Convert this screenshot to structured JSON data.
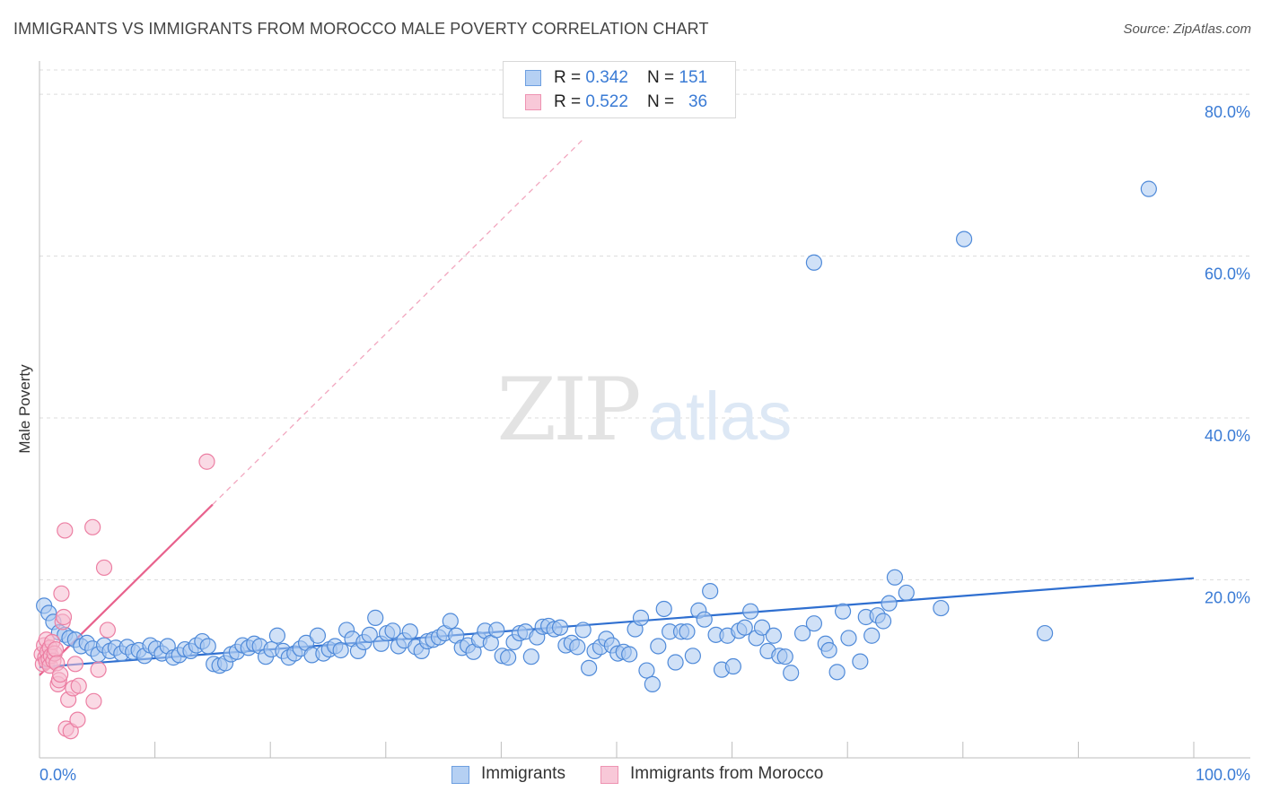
{
  "title": "IMMIGRANTS VS IMMIGRANTS FROM MOROCCO MALE POVERTY CORRELATION CHART",
  "source": "Source: ZipAtlas.com",
  "watermark": {
    "zip": "ZIP",
    "atlas": "atlas"
  },
  "colors": {
    "blue": "#3a7bd5",
    "blue_fill": "#a9c8f0",
    "blue_line": "#2f6fd0",
    "pink": "#ec6f96",
    "pink_fill": "#f6bccf",
    "pink_line": "#e8628d",
    "grid": "#dddddd",
    "tick_label": "#3a7bd5"
  },
  "legend": {
    "rows": [
      {
        "r_label": "R = ",
        "r_value": "0.342",
        "n_label": "N = ",
        "n_value": "151"
      },
      {
        "r_label": "R = ",
        "r_value": "0.522",
        "n_label": "N = ",
        "n_value": "36"
      }
    ]
  },
  "bottom_legend": [
    "Immigrants",
    "Immigrants from Morocco"
  ],
  "chart_data": {
    "type": "scatter",
    "title": "IMMIGRANTS VS IMMIGRANTS FROM MOROCCO MALE POVERTY CORRELATION CHART",
    "xlabel": "",
    "ylabel": "Male Poverty",
    "xlim": [
      0,
      100
    ],
    "ylim": [
      -2,
      83
    ],
    "x_tick_labels": [
      {
        "value": 0,
        "label": "0.0%"
      },
      {
        "value": 100,
        "label": "100.0%"
      }
    ],
    "y_tick_labels": [
      {
        "value": 20,
        "label": "20.0%"
      },
      {
        "value": 40,
        "label": "40.0%"
      },
      {
        "value": 60,
        "label": "60.0%"
      },
      {
        "value": 80,
        "label": "80.0%"
      }
    ],
    "x_minor_ticks": [
      10,
      20,
      30,
      40,
      50,
      60,
      70,
      80,
      90,
      100
    ],
    "grid": true,
    "series": [
      {
        "name": "Immigrants",
        "R": 0.342,
        "N": 151,
        "trend": {
          "x0": 0,
          "y0": 9.2,
          "x1": 100,
          "y1": 20.2
        },
        "points": [
          [
            0.4,
            16.8
          ],
          [
            0.8,
            15.9
          ],
          [
            1.2,
            14.8
          ],
          [
            1.7,
            13.5
          ],
          [
            2.2,
            13.2
          ],
          [
            2.6,
            12.8
          ],
          [
            3.1,
            12.6
          ],
          [
            3.6,
            11.8
          ],
          [
            4.1,
            12.2
          ],
          [
            4.6,
            11.5
          ],
          [
            5.1,
            10.8
          ],
          [
            5.6,
            11.9
          ],
          [
            6.1,
            11.2
          ],
          [
            6.6,
            11.6
          ],
          [
            7.1,
            10.9
          ],
          [
            7.6,
            11.7
          ],
          [
            8.1,
            11.1
          ],
          [
            8.6,
            11.3
          ],
          [
            9.1,
            10.6
          ],
          [
            9.6,
            11.9
          ],
          [
            10.1,
            11.5
          ],
          [
            10.6,
            10.9
          ],
          [
            11.1,
            11.8
          ],
          [
            11.6,
            10.4
          ],
          [
            12.1,
            10.7
          ],
          [
            12.6,
            11.4
          ],
          [
            13.1,
            11.2
          ],
          [
            13.6,
            11.9
          ],
          [
            14.1,
            12.4
          ],
          [
            14.6,
            11.8
          ],
          [
            15.1,
            9.6
          ],
          [
            15.6,
            9.4
          ],
          [
            16.1,
            9.7
          ],
          [
            16.6,
            10.8
          ],
          [
            17.1,
            11.1
          ],
          [
            17.6,
            11.9
          ],
          [
            18.1,
            11.6
          ],
          [
            18.6,
            12.1
          ],
          [
            19.1,
            11.8
          ],
          [
            19.6,
            10.5
          ],
          [
            20.1,
            11.4
          ],
          [
            20.6,
            13.1
          ],
          [
            21.1,
            11.2
          ],
          [
            21.6,
            10.4
          ],
          [
            22.1,
            10.9
          ],
          [
            22.6,
            11.5
          ],
          [
            23.1,
            12.2
          ],
          [
            23.6,
            10.7
          ],
          [
            24.1,
            13.1
          ],
          [
            24.6,
            10.9
          ],
          [
            25.1,
            11.4
          ],
          [
            25.6,
            11.8
          ],
          [
            26.1,
            11.3
          ],
          [
            26.6,
            13.8
          ],
          [
            27.1,
            12.7
          ],
          [
            27.6,
            11.2
          ],
          [
            28.1,
            12.3
          ],
          [
            28.6,
            13.2
          ],
          [
            29.1,
            15.3
          ],
          [
            29.6,
            12.1
          ],
          [
            30.1,
            13.4
          ],
          [
            30.6,
            13.7
          ],
          [
            31.1,
            11.8
          ],
          [
            31.6,
            12.5
          ],
          [
            32.1,
            13.6
          ],
          [
            32.6,
            11.7
          ],
          [
            33.1,
            11.2
          ],
          [
            33.6,
            12.4
          ],
          [
            34.1,
            12.6
          ],
          [
            34.6,
            12.9
          ],
          [
            35.1,
            13.4
          ],
          [
            35.6,
            14.9
          ],
          [
            36.1,
            13.1
          ],
          [
            36.6,
            11.6
          ],
          [
            37.1,
            11.9
          ],
          [
            37.6,
            11.1
          ],
          [
            38.1,
            12.6
          ],
          [
            38.6,
            13.7
          ],
          [
            39.1,
            12.2
          ],
          [
            39.6,
            13.8
          ],
          [
            40.1,
            10.6
          ],
          [
            40.6,
            10.4
          ],
          [
            41.1,
            12.3
          ],
          [
            41.6,
            13.4
          ],
          [
            42.1,
            13.6
          ],
          [
            42.6,
            10.5
          ],
          [
            43.1,
            12.9
          ],
          [
            43.6,
            14.2
          ],
          [
            44.1,
            14.3
          ],
          [
            44.6,
            13.9
          ],
          [
            45.1,
            14.1
          ],
          [
            45.6,
            11.9
          ],
          [
            46.1,
            12.2
          ],
          [
            46.6,
            11.7
          ],
          [
            47.1,
            13.8
          ],
          [
            47.6,
            9.1
          ],
          [
            48.1,
            11.2
          ],
          [
            48.6,
            11.7
          ],
          [
            49.1,
            12.7
          ],
          [
            49.6,
            11.9
          ],
          [
            50.1,
            10.9
          ],
          [
            50.6,
            11.1
          ],
          [
            51.1,
            10.8
          ],
          [
            51.6,
            13.9
          ],
          [
            52.1,
            15.3
          ],
          [
            52.6,
            8.8
          ],
          [
            53.1,
            7.1
          ],
          [
            53.6,
            11.8
          ],
          [
            54.1,
            16.4
          ],
          [
            54.6,
            13.6
          ],
          [
            55.1,
            9.8
          ],
          [
            55.6,
            13.6
          ],
          [
            56.1,
            13.6
          ],
          [
            56.6,
            10.6
          ],
          [
            57.1,
            16.2
          ],
          [
            57.6,
            15.1
          ],
          [
            58.1,
            18.6
          ],
          [
            58.6,
            13.2
          ],
          [
            59.1,
            8.9
          ],
          [
            59.6,
            13.1
          ],
          [
            60.1,
            9.3
          ],
          [
            60.6,
            13.7
          ],
          [
            61.1,
            14.1
          ],
          [
            61.6,
            16.1
          ],
          [
            62.1,
            12.8
          ],
          [
            62.6,
            14.1
          ],
          [
            63.1,
            11.2
          ],
          [
            63.6,
            13.1
          ],
          [
            64.1,
            10.6
          ],
          [
            64.6,
            10.5
          ],
          [
            65.1,
            8.5
          ],
          [
            66.1,
            13.4
          ],
          [
            67.1,
            14.6
          ],
          [
            68.1,
            12.1
          ],
          [
            68.4,
            11.3
          ],
          [
            69.1,
            8.6
          ],
          [
            69.6,
            16.1
          ],
          [
            70.1,
            12.8
          ],
          [
            71.1,
            9.9
          ],
          [
            71.6,
            15.4
          ],
          [
            72.1,
            13.1
          ],
          [
            72.6,
            15.6
          ],
          [
            73.1,
            14.9
          ],
          [
            73.6,
            17.1
          ],
          [
            74.1,
            20.3
          ],
          [
            75.1,
            18.4
          ],
          [
            78.1,
            16.5
          ],
          [
            87.1,
            13.4
          ],
          [
            67.1,
            59.2
          ],
          [
            80.1,
            62.1
          ],
          [
            96.1,
            68.3
          ]
        ]
      },
      {
        "name": "Immigrants from Morocco",
        "R": 0.522,
        "N": 36,
        "trend": {
          "x0": 0,
          "y0": 8.2,
          "x1": 15,
          "y1": 29.3
        },
        "trend_extension": {
          "x0": 15,
          "y0": 29.3,
          "x1": 47,
          "y1": 74.3
        },
        "points": [
          [
            0.2,
            10.8
          ],
          [
            0.3,
            9.6
          ],
          [
            0.4,
            11.9
          ],
          [
            0.5,
            10.4
          ],
          [
            0.6,
            12.6
          ],
          [
            0.6,
            9.9
          ],
          [
            0.7,
            11.1
          ],
          [
            0.8,
            10.2
          ],
          [
            0.9,
            11.6
          ],
          [
            0.9,
            9.4
          ],
          [
            1.0,
            10.6
          ],
          [
            1.1,
            12.3
          ],
          [
            1.2,
            10.0
          ],
          [
            1.3,
            10.9
          ],
          [
            1.4,
            11.4
          ],
          [
            1.5,
            9.7
          ],
          [
            1.6,
            7.1
          ],
          [
            1.7,
            7.6
          ],
          [
            1.8,
            8.3
          ],
          [
            1.9,
            18.3
          ],
          [
            2.0,
            14.8
          ],
          [
            2.1,
            15.4
          ],
          [
            2.2,
            26.1
          ],
          [
            2.3,
            1.6
          ],
          [
            2.5,
            5.2
          ],
          [
            2.7,
            1.3
          ],
          [
            2.9,
            6.6
          ],
          [
            3.1,
            9.6
          ],
          [
            3.3,
            2.7
          ],
          [
            3.4,
            6.9
          ],
          [
            4.6,
            26.5
          ],
          [
            4.7,
            5.0
          ],
          [
            5.1,
            8.9
          ],
          [
            5.6,
            21.5
          ],
          [
            5.9,
            13.8
          ],
          [
            14.5,
            34.6
          ]
        ]
      }
    ]
  }
}
